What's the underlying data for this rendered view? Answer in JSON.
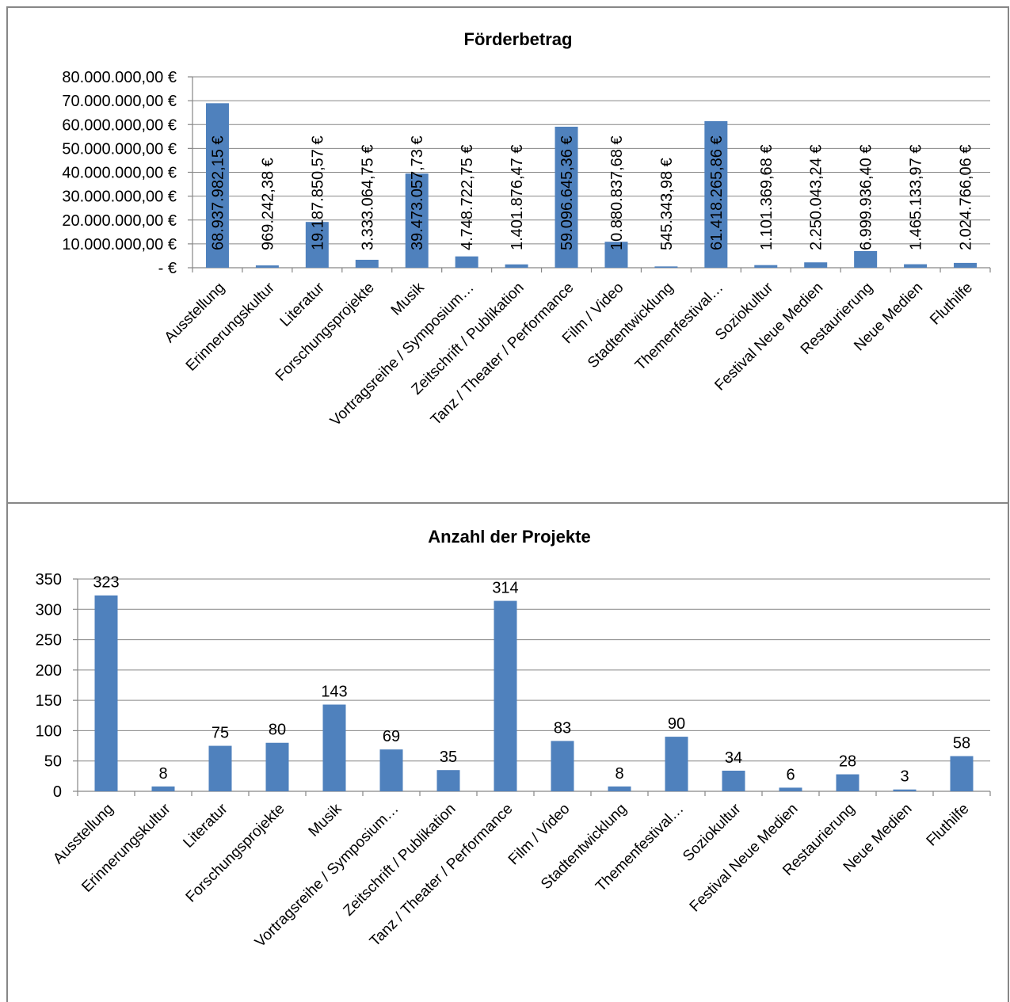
{
  "chart_data": [
    {
      "type": "bar",
      "title": "Förderbetrag",
      "xlabel": "",
      "ylabel": "",
      "ylim": [
        0,
        80000000
      ],
      "grid": true,
      "bar_color": "#4F81BD",
      "yticks": [
        "-   €",
        "10.000.000,00 €",
        "20.000.000,00 €",
        "30.000.000,00 €",
        "40.000.000,00 €",
        "50.000.000,00 €",
        "60.000.000,00 €",
        "70.000.000,00 €",
        "80.000.000,00 €"
      ],
      "categories": [
        "Ausstellung",
        "Erinnerungskultur",
        "Literatur",
        "Forschungsprojekte",
        "Musik",
        "Vortragsreihe / Symposium…",
        "Zeitschrift / Publikation",
        "Tanz / Theater / Performance",
        "Film / Video",
        "Stadtentwicklung",
        "Themenfestival…",
        "Soziokultur",
        "Festival Neue Medien",
        "Restaurierung",
        "Neue Medien",
        "Fluthilfe"
      ],
      "values": [
        68937982.15,
        969242.38,
        19187850.57,
        3333064.75,
        39473057.73,
        4748722.75,
        1401876.47,
        59096645.36,
        10880837.68,
        545343.98,
        61418265.86,
        1101369.68,
        2250043.24,
        6999936.4,
        1465133.97,
        2024766.06
      ],
      "data_labels": [
        "68.937.982,15 €",
        "969.242,38 €",
        "19.187.850,57 €",
        "3.333.064,75 €",
        "39.473.057,73 €",
        "4.748.722,75 €",
        "1.401.876,47 €",
        "59.096.645,36 €",
        "10.880.837,68 €",
        "545.343,98 €",
        "61.418.265,86 €",
        "1.101.369,68 €",
        "2.250.043,24 €",
        "6.999.936,40 €",
        "1.465.133,97 €",
        "2.024.766,06 €"
      ]
    },
    {
      "type": "bar",
      "title": "Anzahl der Projekte",
      "xlabel": "",
      "ylabel": "",
      "ylim": [
        0,
        350
      ],
      "grid": true,
      "bar_color": "#4F81BD",
      "yticks": [
        "0",
        "50",
        "100",
        "150",
        "200",
        "250",
        "300",
        "350"
      ],
      "categories": [
        "Ausstellung",
        "Erinnerungskultur",
        "Literatur",
        "Forschungsprojekte",
        "Musik",
        "Vortragsreihe / Symposium…",
        "Zeitschrift / Publikation",
        "Tanz / Theater / Performance",
        "Film / Video",
        "Stadtentwicklung",
        "Themenfestival…",
        "Soziokultur",
        "Festival Neue Medien",
        "Restaurierung",
        "Neue Medien",
        "Fluthilfe"
      ],
      "values": [
        323,
        8,
        75,
        80,
        143,
        69,
        35,
        314,
        83,
        8,
        90,
        34,
        6,
        28,
        3,
        58
      ],
      "data_labels": [
        "323",
        "8",
        "75",
        "80",
        "143",
        "69",
        "35",
        "314",
        "83",
        "8",
        "90",
        "34",
        "6",
        "28",
        "3",
        "58"
      ]
    }
  ]
}
